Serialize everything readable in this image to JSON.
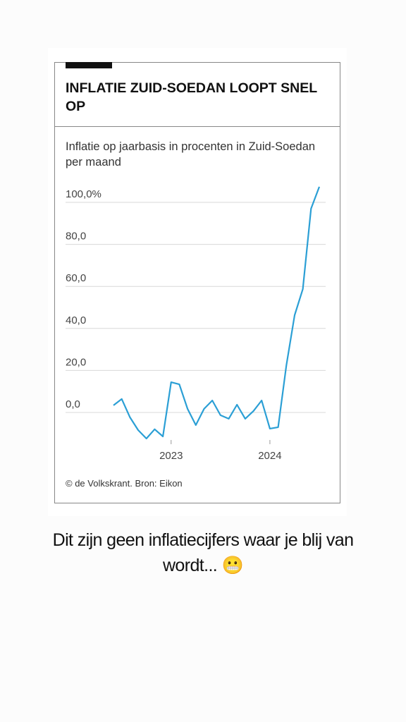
{
  "chart_data": {
    "type": "line",
    "title": "INFLATIE ZUID-SOEDAN LOOPT SNEL OP",
    "subtitle": "Inflatie op jaarbasis in procenten in Zuid-Soedan per maand",
    "source": "© de Volkskrant. Bron: Eikon",
    "categories": [
      null,
      null,
      null,
      null,
      null,
      null,
      null,
      "2023",
      null,
      null,
      null,
      null,
      null,
      null,
      null,
      null,
      null,
      null,
      null,
      "2024",
      null,
      null,
      null,
      null,
      null,
      null
    ],
    "series": [
      {
        "color": "#2b9fd5",
        "values": [
          3.4,
          6.4,
          -2.3,
          -8.4,
          -12.4,
          -8,
          -11.4,
          14.4,
          13.4,
          1.7,
          -6,
          1.7,
          5.7,
          -1.3,
          -3,
          3.7,
          -3,
          0.7,
          5.7,
          -7.7,
          -7,
          22.5,
          46.3,
          58.7,
          97,
          107.4
        ]
      }
    ],
    "ylim": [
      -15,
      110
    ],
    "yticks": [
      {
        "value": 0,
        "label": "0,0"
      },
      {
        "value": 20,
        "label": "20,0"
      },
      {
        "value": 40,
        "label": "40,0"
      },
      {
        "value": 60,
        "label": "60,0"
      },
      {
        "value": 80,
        "label": "80,0"
      },
      {
        "value": 100,
        "label": "100,0%"
      }
    ],
    "grid": true
  },
  "caption": "Dit zijn geen inflatiecijfers waar je blij van wordt... 😬"
}
